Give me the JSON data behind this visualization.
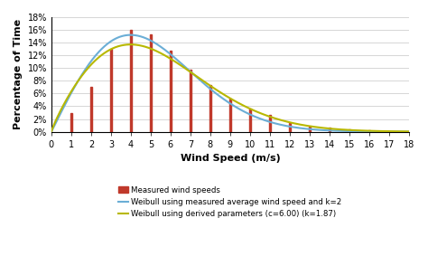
{
  "bar_x": [
    1,
    2,
    3,
    4,
    5,
    6,
    7,
    8,
    9,
    10,
    11,
    12,
    13,
    14,
    15,
    16,
    17
  ],
  "bar_heights": [
    0.03,
    0.07,
    0.13,
    0.16,
    0.153,
    0.127,
    0.098,
    0.073,
    0.052,
    0.037,
    0.026,
    0.014,
    0.008,
    0.006,
    0.004,
    0.002,
    0.001
  ],
  "bar_color": "#c0392b",
  "weibull1_color": "#6baed6",
  "weibull2_color": "#b8b800",
  "weibull1_k": 2.0,
  "weibull1_c": 5.64,
  "weibull2_k": 1.87,
  "weibull2_c": 6.0,
  "xlim": [
    0,
    18
  ],
  "ylim": [
    0,
    0.18
  ],
  "xticks": [
    0,
    1,
    2,
    3,
    4,
    5,
    6,
    7,
    8,
    9,
    10,
    11,
    12,
    13,
    14,
    15,
    16,
    17,
    18
  ],
  "yticks": [
    0,
    0.02,
    0.04,
    0.06,
    0.08,
    0.1,
    0.12,
    0.14,
    0.16,
    0.18
  ],
  "ytick_labels": [
    "0%",
    "2%",
    "4%",
    "6%",
    "8%",
    "10%",
    "12%",
    "14%",
    "16%",
    "18%"
  ],
  "xlabel": "Wind Speed (m/s)",
  "ylabel": "Percentage of Time",
  "legend1": "Measured wind speeds",
  "legend2": "Weibull using measured average wind speed and k=2",
  "legend3": "Weibull using derived parameters (c=6.00) (k=1.87)",
  "bar_width": 0.08
}
